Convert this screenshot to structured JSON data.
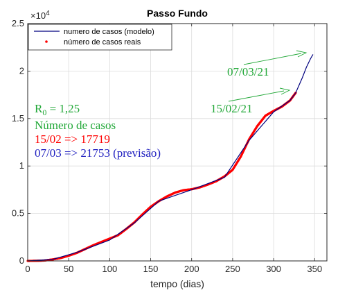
{
  "chart_data": {
    "type": "line",
    "title": "Passo Fundo",
    "xlabel": "tempo (dias)",
    "ylabel": "",
    "xlim": [
      0,
      365
    ],
    "ylim": [
      0,
      25000
    ],
    "x_ticks": [
      0,
      50,
      100,
      150,
      200,
      250,
      300,
      350
    ],
    "y_ticks": [
      0,
      0.5,
      1,
      1.5,
      2,
      2.5
    ],
    "y_multiplier": "×10",
    "y_multiplier_exp": "4",
    "grid": true,
    "legend_placement": "top-left",
    "series": [
      {
        "name": "numero de casos (modelo)",
        "style": "line",
        "color": "#00007f",
        "x": [
          0,
          30,
          60,
          100,
          130,
          160,
          200,
          240,
          270,
          300,
          320,
          327,
          335,
          340,
          345,
          348
        ],
        "y": [
          0,
          150,
          900,
          2200,
          4000,
          6300,
          7500,
          8800,
          12700,
          15700,
          16900,
          17719,
          19300,
          20400,
          21300,
          21753
        ]
      },
      {
        "name": "número de casos reais",
        "style": "points",
        "color": "#ff0000",
        "x": [
          0,
          10,
          20,
          30,
          40,
          50,
          60,
          70,
          80,
          90,
          100,
          110,
          120,
          130,
          140,
          150,
          160,
          170,
          180,
          190,
          200,
          210,
          220,
          230,
          240,
          250,
          260,
          270,
          280,
          290,
          300,
          310,
          320,
          327
        ],
        "y": [
          0,
          10,
          40,
          150,
          300,
          550,
          850,
          1250,
          1650,
          2000,
          2350,
          2700,
          3350,
          4050,
          4900,
          5700,
          6300,
          6800,
          7200,
          7450,
          7550,
          7750,
          8050,
          8400,
          8900,
          9600,
          11000,
          12800,
          14200,
          15300,
          15800,
          16250,
          16900,
          17719
        ]
      }
    ],
    "annotations": {
      "r0_prefix": "R",
      "r0_sub": "0",
      "r0_value": " = 1,25",
      "heading": "Número de casos",
      "line_real": "15/02 => 17719",
      "line_model": "07/03 => 21753 (previsão)",
      "date_model": "07/03/21",
      "date_real": "15/02/21"
    },
    "colors": {
      "green": "#22a838",
      "red": "#ff0000",
      "blue": "#2020c0",
      "model_line": "#00007f",
      "grid": "#dcdcdc",
      "axis": "#262626"
    }
  }
}
